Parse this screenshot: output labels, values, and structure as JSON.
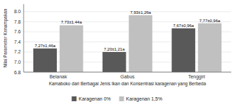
{
  "chart_data": {
    "type": "bar",
    "categories": [
      "Belanak",
      "Gabus",
      "Tenggiri"
    ],
    "series": [
      {
        "name": "Karagenan 0%",
        "color": "#595959",
        "values": [
          7.27,
          7.2,
          7.67
        ],
        "value_labels": [
          "7,27±1,46a",
          "7,20±1,21a",
          "7,67±0,96a"
        ]
      },
      {
        "name": "Karagenan 1,5%",
        "color": "#c0c0c0",
        "values": [
          7.73,
          7.93,
          7.77
        ],
        "value_labels": [
          "7,73±1,44a",
          "7,93±1,26a",
          "7,77±0,96a"
        ]
      }
    ],
    "xlabel": "Kamaboko dari Berbagai Jenis Ikan dan Konsentrasi karagenan yang Berbeda",
    "ylabel": "Nilai Parameter Kenampakan",
    "ylim": [
      6.8,
      8.15
    ],
    "yticks": [
      6.8,
      {
        "value": 7.0,
        "label": "7.0"
      },
      7.2,
      7.4,
      7.6,
      7.8,
      {
        "value": 8.0,
        "label": "8.0"
      }
    ],
    "grid": true,
    "data_labels": true,
    "legend": "bottom"
  }
}
